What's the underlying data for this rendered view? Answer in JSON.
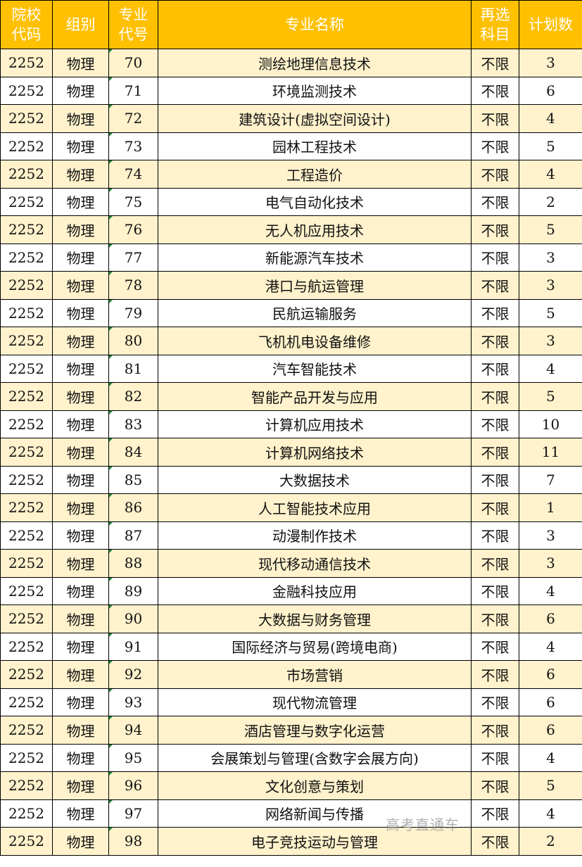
{
  "headers": [
    "院校\n代码",
    "组别",
    "专业\n代号",
    "专业名称",
    "再选\n科目",
    "计划数"
  ],
  "colors": {
    "header_bg": "#FFC000",
    "alt_row_bg": "#FFF2CC"
  },
  "rows": [
    [
      "2252",
      "物理",
      "70",
      "测绘地理信息技术",
      "不限",
      "3"
    ],
    [
      "2252",
      "物理",
      "71",
      "环境监测技术",
      "不限",
      "6"
    ],
    [
      "2252",
      "物理",
      "72",
      "建筑设计(虚拟空间设计)",
      "不限",
      "4"
    ],
    [
      "2252",
      "物理",
      "73",
      "园林工程技术",
      "不限",
      "5"
    ],
    [
      "2252",
      "物理",
      "74",
      "工程造价",
      "不限",
      "4"
    ],
    [
      "2252",
      "物理",
      "75",
      "电气自动化技术",
      "不限",
      "2"
    ],
    [
      "2252",
      "物理",
      "76",
      "无人机应用技术",
      "不限",
      "5"
    ],
    [
      "2252",
      "物理",
      "77",
      "新能源汽车技术",
      "不限",
      "3"
    ],
    [
      "2252",
      "物理",
      "78",
      "港口与航运管理",
      "不限",
      "3"
    ],
    [
      "2252",
      "物理",
      "79",
      "民航运输服务",
      "不限",
      "5"
    ],
    [
      "2252",
      "物理",
      "80",
      "飞机机电设备维修",
      "不限",
      "3"
    ],
    [
      "2252",
      "物理",
      "81",
      "汽车智能技术",
      "不限",
      "4"
    ],
    [
      "2252",
      "物理",
      "82",
      "智能产品开发与应用",
      "不限",
      "5"
    ],
    [
      "2252",
      "物理",
      "83",
      "计算机应用技术",
      "不限",
      "10"
    ],
    [
      "2252",
      "物理",
      "84",
      "计算机网络技术",
      "不限",
      "11"
    ],
    [
      "2252",
      "物理",
      "85",
      "大数据技术",
      "不限",
      "7"
    ],
    [
      "2252",
      "物理",
      "86",
      "人工智能技术应用",
      "不限",
      "1"
    ],
    [
      "2252",
      "物理",
      "87",
      "动漫制作技术",
      "不限",
      "3"
    ],
    [
      "2252",
      "物理",
      "88",
      "现代移动通信技术",
      "不限",
      "3"
    ],
    [
      "2252",
      "物理",
      "89",
      "金融科技应用",
      "不限",
      "4"
    ],
    [
      "2252",
      "物理",
      "90",
      "大数据与财务管理",
      "不限",
      "6"
    ],
    [
      "2252",
      "物理",
      "91",
      "国际经济与贸易(跨境电商)",
      "不限",
      "4"
    ],
    [
      "2252",
      "物理",
      "92",
      "市场营销",
      "不限",
      "6"
    ],
    [
      "2252",
      "物理",
      "93",
      "现代物流管理",
      "不限",
      "6"
    ],
    [
      "2252",
      "物理",
      "94",
      "酒店管理与数字化运营",
      "不限",
      "6"
    ],
    [
      "2252",
      "物理",
      "95",
      "会展策划与管理(含数字会展方向)",
      "不限",
      "4"
    ],
    [
      "2252",
      "物理",
      "96",
      "文化创意与策划",
      "不限",
      "5"
    ],
    [
      "2252",
      "物理",
      "97",
      "网络新闻与传播",
      "不限",
      "4"
    ],
    [
      "2252",
      "物理",
      "98",
      "电子竞技运动与管理",
      "不限",
      "2"
    ]
  ],
  "watermark": "高考直通车"
}
